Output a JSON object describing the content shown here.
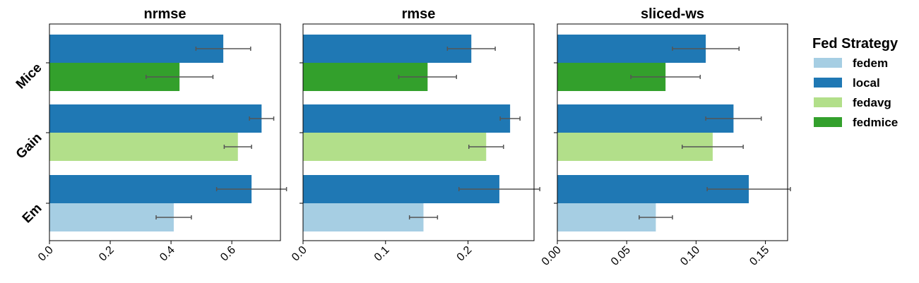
{
  "chart_data": {
    "type": "bar",
    "orientation": "horizontal",
    "categories": [
      "Mice",
      "Gain",
      "Em"
    ],
    "legend": {
      "title": "Fed Strategy",
      "placement": "outside-right",
      "entries": [
        {
          "name": "fedem",
          "color": "#a6cee3"
        },
        {
          "name": "local",
          "color": "#1f78b4"
        },
        {
          "name": "fedavg",
          "color": "#b2df8a"
        },
        {
          "name": "fedmice",
          "color": "#33a02c"
        }
      ]
    },
    "panels": [
      {
        "title": "nrmse",
        "xlim": [
          0,
          0.76
        ],
        "xticks": [
          0.0,
          0.2,
          0.4,
          0.6
        ],
        "xtick_labels": [
          "0.0",
          "0.2",
          "0.4",
          "0.6"
        ],
        "bars": [
          {
            "category": "Mice",
            "strategy": "local",
            "value": 0.572,
            "err": 0.09
          },
          {
            "category": "Mice",
            "strategy": "fedmice",
            "value": 0.428,
            "err": 0.11
          },
          {
            "category": "Gain",
            "strategy": "local",
            "value": 0.698,
            "err": 0.04
          },
          {
            "category": "Gain",
            "strategy": "fedavg",
            "value": 0.62,
            "err": 0.045
          },
          {
            "category": "Em",
            "strategy": "local",
            "value": 0.665,
            "err": 0.115
          },
          {
            "category": "Em",
            "strategy": "fedem",
            "value": 0.409,
            "err": 0.058
          }
        ]
      },
      {
        "title": "rmse",
        "xlim": [
          0,
          0.28
        ],
        "xticks": [
          0.0,
          0.1,
          0.2
        ],
        "xtick_labels": [
          "0.0",
          "0.1",
          "0.2"
        ],
        "bars": [
          {
            "category": "Mice",
            "strategy": "local",
            "value": 0.204,
            "err": 0.029
          },
          {
            "category": "Mice",
            "strategy": "fedmice",
            "value": 0.151,
            "err": 0.035
          },
          {
            "category": "Gain",
            "strategy": "local",
            "value": 0.251,
            "err": 0.012
          },
          {
            "category": "Gain",
            "strategy": "fedavg",
            "value": 0.222,
            "err": 0.021
          },
          {
            "category": "Em",
            "strategy": "local",
            "value": 0.238,
            "err": 0.049
          },
          {
            "category": "Em",
            "strategy": "fedem",
            "value": 0.146,
            "err": 0.017
          }
        ]
      },
      {
        "title": "sliced-ws",
        "xlim": [
          0,
          0.166
        ],
        "xticks": [
          0.0,
          0.05,
          0.1,
          0.15
        ],
        "xtick_labels": [
          "0.00",
          "0.05",
          "0.10",
          "0.15"
        ],
        "bars": [
          {
            "category": "Mice",
            "strategy": "local",
            "value": 0.107,
            "err": 0.024
          },
          {
            "category": "Mice",
            "strategy": "fedmice",
            "value": 0.078,
            "err": 0.025
          },
          {
            "category": "Gain",
            "strategy": "local",
            "value": 0.127,
            "err": 0.02
          },
          {
            "category": "Gain",
            "strategy": "fedavg",
            "value": 0.112,
            "err": 0.022
          },
          {
            "category": "Em",
            "strategy": "local",
            "value": 0.138,
            "err": 0.03
          },
          {
            "category": "Em",
            "strategy": "fedem",
            "value": 0.071,
            "err": 0.012
          }
        ]
      }
    ],
    "grid": false
  }
}
